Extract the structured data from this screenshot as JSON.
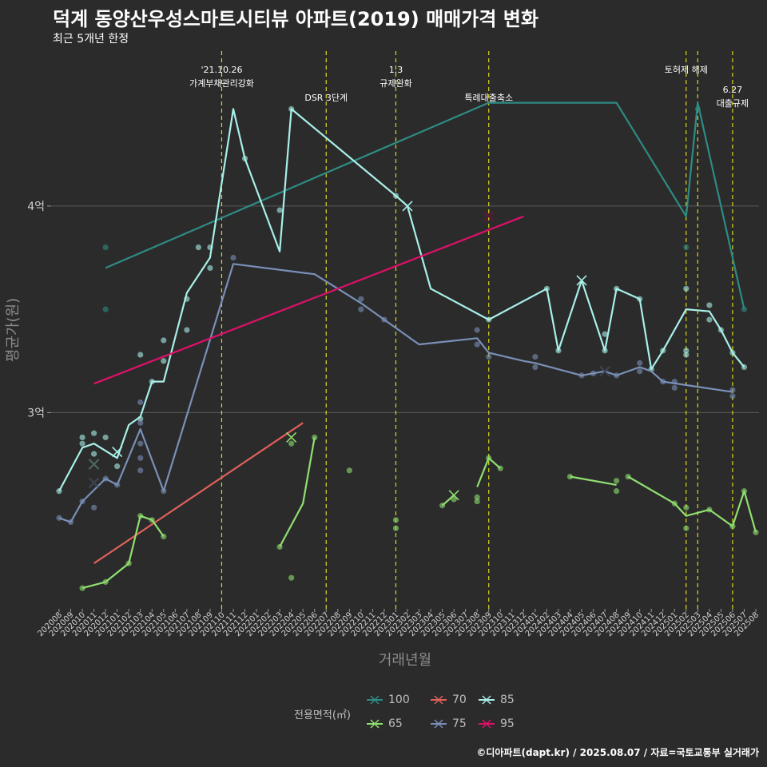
{
  "title": "덕계 동양산우성스마트시티뷰 아파트(2019) 매매가격 변화",
  "subtitle": "최근 5개년 한정",
  "caption": "©디아파트(dapt.kr) / 2025.08.07 / 자료=국토교통부 실거래가",
  "legend": {
    "title": "전용면적(㎡)",
    "items": [
      {
        "label": "100",
        "color": "#2e8b84"
      },
      {
        "label": "70",
        "color": "#e0605a"
      },
      {
        "label": "85",
        "color": "#a8f0e8"
      },
      {
        "label": "65",
        "color": "#90e070"
      },
      {
        "label": "75",
        "color": "#7a90b8"
      },
      {
        "label": "95",
        "color": "#e0106a"
      }
    ]
  },
  "chart_data": {
    "type": "line",
    "xlabel": "거래년월",
    "ylabel": "평균가(원)",
    "x_ticks": [
      "202008",
      "202009",
      "202010",
      "202011",
      "202012",
      "202101",
      "202102",
      "202103",
      "202104",
      "202105",
      "202106",
      "202107",
      "202108",
      "202109",
      "202110",
      "202111",
      "202112",
      "202201",
      "202202",
      "202203",
      "202204",
      "202205",
      "202206",
      "202207",
      "202208",
      "202209",
      "202210",
      "202211",
      "202212",
      "202301",
      "202302",
      "202303",
      "202304",
      "202305",
      "202306",
      "202307",
      "202308",
      "202309",
      "202310",
      "202311",
      "202312",
      "202401",
      "202402",
      "202403",
      "202404",
      "202405",
      "202406",
      "202407",
      "202408",
      "202409",
      "202410",
      "202411",
      "202412",
      "202501",
      "202502",
      "202503",
      "202504",
      "202505",
      "202506",
      "202507",
      "202508"
    ],
    "y_ticks": [
      {
        "value": 3.0,
        "label": "3억"
      },
      {
        "value": 4.0,
        "label": "4억"
      }
    ],
    "ylim": [
      2.05,
      4.75
    ],
    "events": [
      {
        "x": "202110",
        "label": "'21.10.26\n가계부채관리강화",
        "level": 1
      },
      {
        "x": "202207",
        "label": "DSR 3단계",
        "level": 2
      },
      {
        "x": "202301",
        "label": "1.3\n규제완화",
        "level": 1
      },
      {
        "x": "202309",
        "label": "특례대출축소",
        "level": 2
      },
      {
        "x": "202502",
        "label": "토허제 해제",
        "level": 1
      },
      {
        "x": "202503",
        "label": "",
        "level": 1
      },
      {
        "x": "202506",
        "label": "6.27\n대출규제",
        "level": 1.5
      }
    ],
    "series": [
      {
        "name": "100",
        "color": "#2e8b84",
        "line": [
          [
            "202012",
            3.7
          ],
          [
            "202309",
            4.5
          ],
          [
            "202408",
            4.5
          ],
          [
            "202502",
            3.95
          ],
          [
            "202503",
            4.5
          ],
          [
            "202507",
            3.5
          ]
        ],
        "points": [
          [
            "202012",
            3.8
          ],
          [
            "202012",
            3.5
          ],
          [
            "202502",
            3.8
          ],
          [
            "202503",
            4.47
          ],
          [
            "202507",
            3.5
          ]
        ],
        "crosses": []
      },
      {
        "name": "70",
        "color": "#e0605a",
        "line": [
          [
            "202011",
            2.27
          ],
          [
            "202205",
            2.95
          ]
        ],
        "points": [],
        "crosses": []
      },
      {
        "name": "85",
        "color": "#a8f0e8",
        "line": [
          [
            "202008",
            2.62
          ],
          [
            "202010",
            2.83
          ],
          [
            "202011",
            2.85
          ],
          [
            "202101",
            2.78
          ],
          [
            "202102",
            2.94
          ],
          [
            "202103",
            2.98
          ],
          [
            "202104",
            3.15
          ],
          [
            "202105",
            3.15
          ],
          [
            "202107",
            3.58
          ],
          [
            "202109",
            3.75
          ],
          [
            "202111",
            4.47
          ],
          [
            "202112",
            4.23
          ],
          [
            "202203",
            3.78
          ],
          [
            "202204",
            4.47
          ],
          [
            "202301",
            4.05
          ],
          [
            "202302",
            4.0
          ],
          [
            "202304",
            3.6
          ],
          [
            "202309",
            3.45
          ],
          [
            "202402",
            3.6
          ],
          [
            "202403",
            3.3
          ],
          [
            "202405",
            3.64
          ],
          [
            "202407",
            3.3
          ],
          [
            "202408",
            3.6
          ],
          [
            "202410",
            3.55
          ],
          [
            "202411",
            3.21
          ],
          [
            "202412",
            3.3
          ],
          [
            "202502",
            3.5
          ],
          [
            "202504",
            3.49
          ],
          [
            "202505",
            3.4
          ],
          [
            "202506",
            3.29
          ],
          [
            "202507",
            3.22
          ]
        ],
        "points": [
          [
            "202008",
            2.62
          ],
          [
            "202010",
            2.88
          ],
          [
            "202010",
            2.85
          ],
          [
            "202011",
            2.9
          ],
          [
            "202011",
            2.8
          ],
          [
            "202012",
            2.88
          ],
          [
            "202101",
            2.74
          ],
          [
            "202103",
            2.97
          ],
          [
            "202103",
            3.28
          ],
          [
            "202104",
            3.15
          ],
          [
            "202105",
            3.35
          ],
          [
            "202105",
            3.25
          ],
          [
            "202107",
            3.55
          ],
          [
            "202107",
            3.4
          ],
          [
            "202108",
            3.8
          ],
          [
            "202109",
            3.8
          ],
          [
            "202109",
            3.7
          ],
          [
            "202112",
            4.23
          ],
          [
            "202203",
            3.98
          ],
          [
            "202204",
            4.47
          ],
          [
            "202301",
            4.05
          ],
          [
            "202309",
            3.45
          ],
          [
            "202402",
            3.6
          ],
          [
            "202403",
            3.3
          ],
          [
            "202407",
            3.38
          ],
          [
            "202407",
            3.3
          ],
          [
            "202408",
            3.6
          ],
          [
            "202410",
            3.55
          ],
          [
            "202411",
            3.21
          ],
          [
            "202412",
            3.3
          ],
          [
            "202502",
            3.6
          ],
          [
            "202502",
            3.3
          ],
          [
            "202502",
            3.28
          ],
          [
            "202504",
            3.52
          ],
          [
            "202504",
            3.45
          ],
          [
            "202505",
            3.4
          ],
          [
            "202506",
            3.29
          ],
          [
            "202507",
            3.22
          ]
        ],
        "crosses": [
          [
            "202011",
            2.75
          ],
          [
            "202101",
            2.81
          ],
          [
            "202302",
            4.0
          ],
          [
            "202405",
            3.64
          ]
        ]
      },
      {
        "name": "65",
        "color": "#90e070",
        "line_segments": [
          [
            [
              "202010",
              2.15
            ],
            [
              "202012",
              2.18
            ],
            [
              "202102",
              2.27
            ],
            [
              "202103",
              2.5
            ],
            [
              "202104",
              2.48
            ],
            [
              "202105",
              2.4
            ]
          ],
          [
            [
              "202203",
              2.35
            ],
            [
              "202205",
              2.56
            ],
            [
              "202206",
              2.88
            ]
          ],
          [
            [
              "202305",
              2.55
            ],
            [
              "202306",
              2.6
            ]
          ],
          [
            [
              "202308",
              2.64
            ],
            [
              "202309",
              2.78
            ],
            [
              "202310",
              2.73
            ]
          ],
          [
            [
              "202404",
              2.69
            ],
            [
              "202408",
              2.65
            ]
          ],
          [
            [
              "202409",
              2.69
            ],
            [
              "202501",
              2.56
            ],
            [
              "202502",
              2.5
            ],
            [
              "202504",
              2.53
            ],
            [
              "202506",
              2.45
            ],
            [
              "202507",
              2.62
            ],
            [
              "202508",
              2.42
            ]
          ]
        ],
        "points": [
          [
            "202010",
            2.15
          ],
          [
            "202012",
            2.18
          ],
          [
            "202102",
            2.27
          ],
          [
            "202103",
            2.5
          ],
          [
            "202104",
            2.48
          ],
          [
            "202105",
            2.4
          ],
          [
            "202203",
            2.35
          ],
          [
            "202204",
            2.85
          ],
          [
            "202204",
            2.2
          ],
          [
            "202206",
            2.88
          ],
          [
            "202209",
            2.72
          ],
          [
            "202301",
            2.48
          ],
          [
            "202301",
            2.44
          ],
          [
            "202305",
            2.55
          ],
          [
            "202306",
            2.58
          ],
          [
            "202308",
            2.59
          ],
          [
            "202308",
            2.57
          ],
          [
            "202309",
            2.78
          ],
          [
            "202310",
            2.73
          ],
          [
            "202404",
            2.69
          ],
          [
            "202408",
            2.67
          ],
          [
            "202408",
            2.62
          ],
          [
            "202409",
            2.69
          ],
          [
            "202501",
            2.56
          ],
          [
            "202502",
            2.54
          ],
          [
            "202502",
            2.44
          ],
          [
            "202504",
            2.53
          ],
          [
            "202506",
            2.45
          ],
          [
            "202507",
            2.62
          ],
          [
            "202508",
            2.42
          ]
        ],
        "crosses": [
          [
            "202204",
            2.88
          ],
          [
            "202306",
            2.6
          ]
        ]
      },
      {
        "name": "75",
        "color": "#7a90b8",
        "line": [
          [
            "202008",
            2.49
          ],
          [
            "202009",
            2.47
          ],
          [
            "202010",
            2.57
          ],
          [
            "202012",
            2.68
          ],
          [
            "202101",
            2.65
          ],
          [
            "202103",
            2.92
          ],
          [
            "202105",
            2.62
          ],
          [
            "202111",
            3.72
          ],
          [
            "202206",
            3.67
          ],
          [
            "202210",
            3.53
          ],
          [
            "202212",
            3.45
          ],
          [
            "202303",
            3.33
          ],
          [
            "202308",
            3.36
          ],
          [
            "202309",
            3.29
          ],
          [
            "202312",
            3.25
          ],
          [
            "202401",
            3.24
          ],
          [
            "202405",
            3.18
          ],
          [
            "202406",
            3.19
          ],
          [
            "202407",
            3.2
          ],
          [
            "202408",
            3.18
          ],
          [
            "202410",
            3.22
          ],
          [
            "202411",
            3.2
          ],
          [
            "202412",
            3.15
          ],
          [
            "202506",
            3.1
          ]
        ],
        "points": [
          [
            "202008",
            2.49
          ],
          [
            "202009",
            2.47
          ],
          [
            "202010",
            2.57
          ],
          [
            "202011",
            2.54
          ],
          [
            "202012",
            2.68
          ],
          [
            "202101",
            2.65
          ],
          [
            "202103",
            2.95
          ],
          [
            "202103",
            2.85
          ],
          [
            "202103",
            2.78
          ],
          [
            "202103",
            2.72
          ],
          [
            "202103",
            3.05
          ],
          [
            "202105",
            2.62
          ],
          [
            "202111",
            3.75
          ],
          [
            "202210",
            3.55
          ],
          [
            "202210",
            3.5
          ],
          [
            "202212",
            3.45
          ],
          [
            "202308",
            3.4
          ],
          [
            "202308",
            3.33
          ],
          [
            "202309",
            3.27
          ],
          [
            "202401",
            3.27
          ],
          [
            "202401",
            3.22
          ],
          [
            "202405",
            3.18
          ],
          [
            "202406",
            3.19
          ],
          [
            "202408",
            3.18
          ],
          [
            "202410",
            3.24
          ],
          [
            "202410",
            3.2
          ],
          [
            "202412",
            3.15
          ],
          [
            "202501",
            3.15
          ],
          [
            "202501",
            3.12
          ],
          [
            "202506",
            3.11
          ],
          [
            "202506",
            3.08
          ]
        ],
        "crosses": [
          [
            "202011",
            2.66
          ],
          [
            "202407",
            3.2
          ]
        ]
      },
      {
        "name": "95",
        "color": "#e0106a",
        "line": [
          [
            "202011",
            3.14
          ],
          [
            "202312",
            3.95
          ]
        ],
        "points": [],
        "crosses": [
          [
            "202309",
            3.95
          ]
        ]
      }
    ]
  }
}
